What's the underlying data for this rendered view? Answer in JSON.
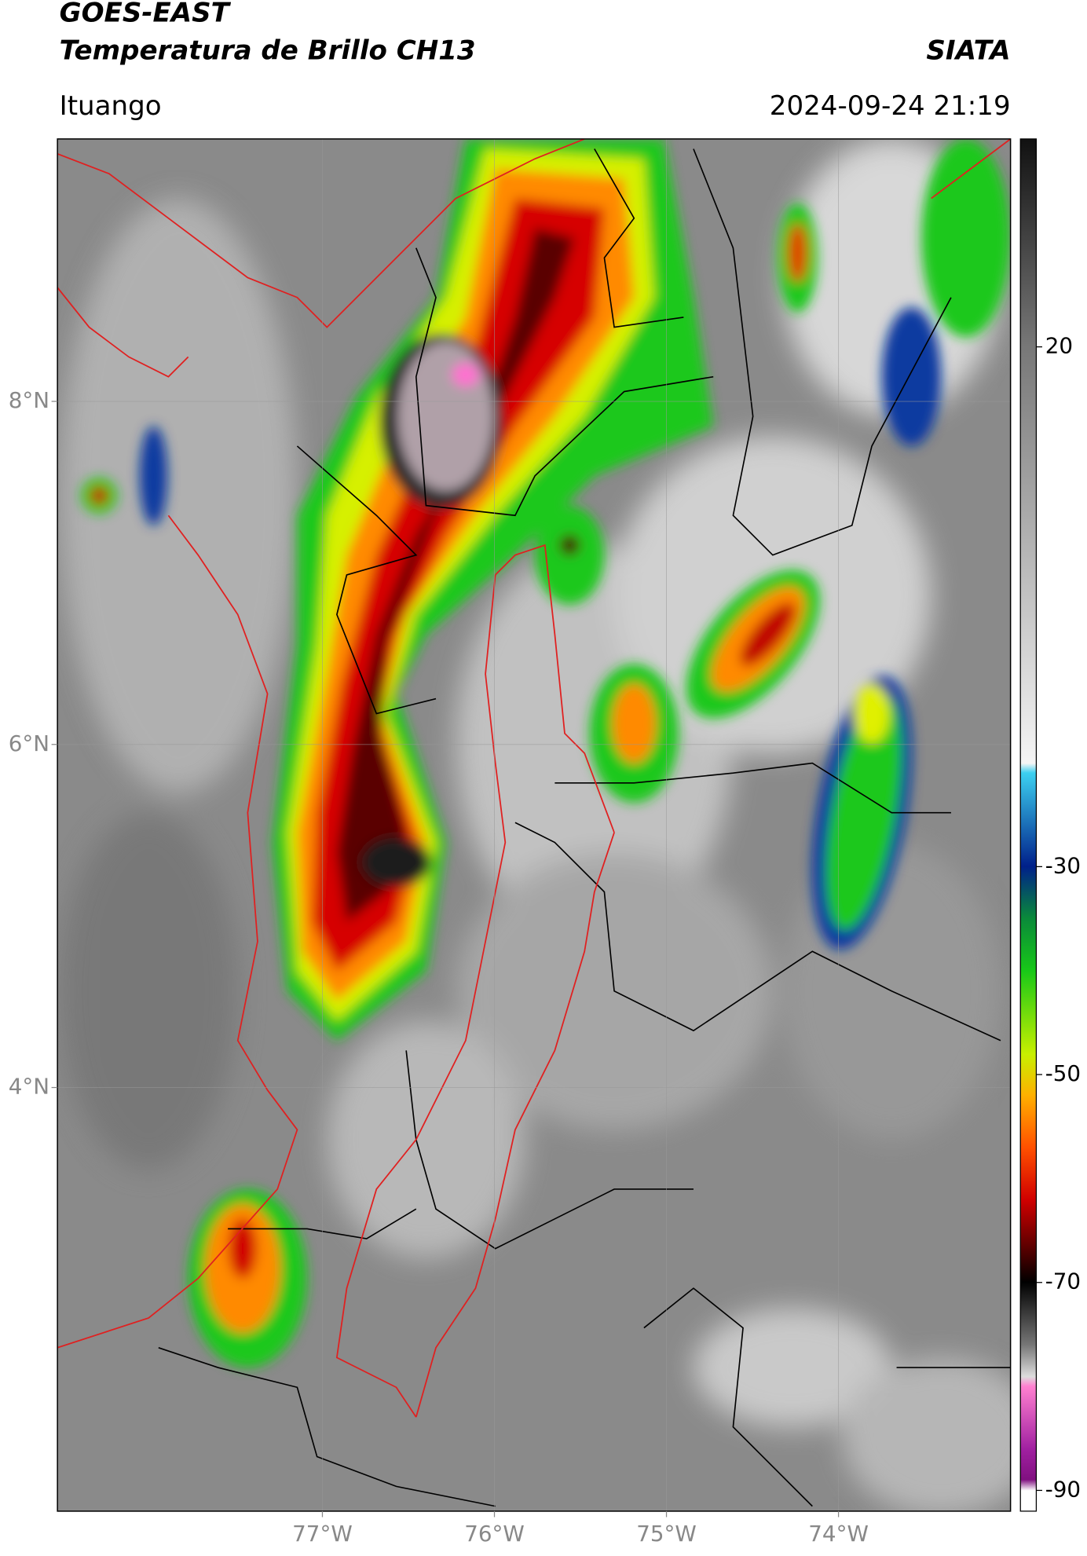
{
  "header": {
    "title": "GOES-EAST",
    "subtitle": "Temperatura de Brillo CH13",
    "source": "SIATA",
    "location": "Ituango",
    "timestamp": "2024-09-24 21:19"
  },
  "map": {
    "xlim": [
      -78.54,
      -73.0
    ],
    "ylim": [
      1.53,
      9.53
    ],
    "xticks": [
      {
        "value": -77,
        "label": "77°W"
      },
      {
        "value": -76,
        "label": "76°W"
      },
      {
        "value": -75,
        "label": "75°W"
      },
      {
        "value": -74,
        "label": "74°W"
      }
    ],
    "yticks": [
      {
        "value": 8,
        "label": "8°N"
      },
      {
        "value": 6,
        "label": "6°N"
      },
      {
        "value": 4,
        "label": "4°N"
      }
    ],
    "grid": true
  },
  "colorbar": {
    "lim": [
      -92,
      40
    ],
    "ticks": [
      20,
      -30,
      -50,
      -70,
      -90
    ]
  }
}
